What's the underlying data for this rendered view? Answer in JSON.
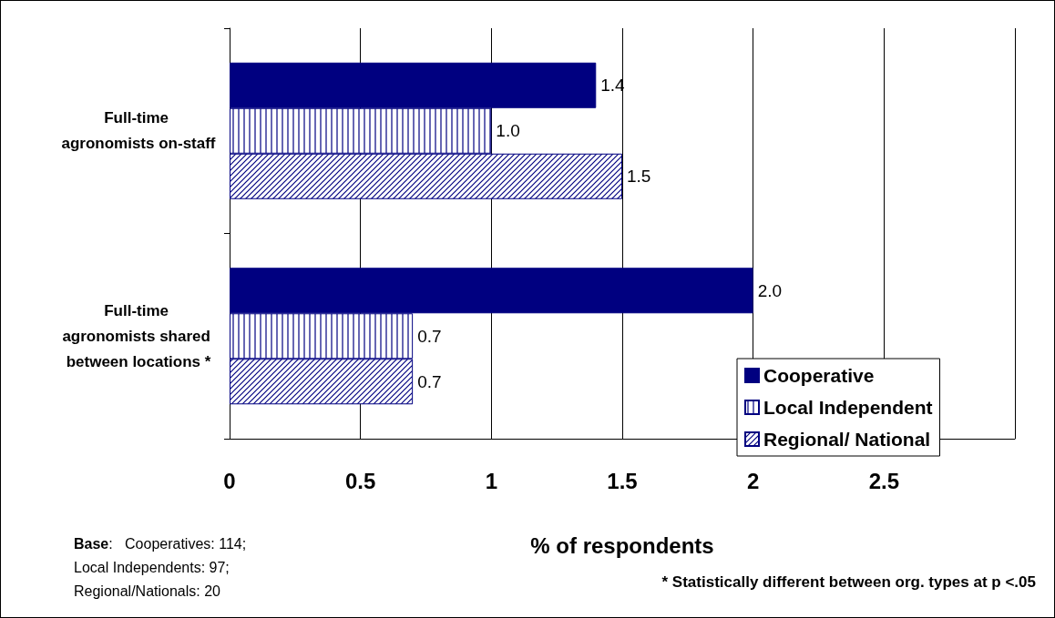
{
  "chart_data": {
    "type": "bar",
    "orientation": "horizontal",
    "xlabel": "% of respondents",
    "categories": [
      "Full-time agronomists on-staff",
      "Full-time agronomists shared between locations *"
    ],
    "series": [
      {
        "name": "Cooperative",
        "color": "#000080",
        "values": [
          1.4,
          2.0
        ],
        "value_labels": [
          "1.4",
          "2.0"
        ]
      },
      {
        "name": "Local Independent",
        "color": "#000080",
        "values": [
          1.0,
          0.7
        ],
        "value_labels": [
          "1.0",
          "0.7"
        ]
      },
      {
        "name": "Regional/ National",
        "color": "#000080",
        "values": [
          1.5,
          0.7
        ],
        "value_labels": [
          "1.5",
          "0.7"
        ]
      }
    ],
    "xlim": [
      0,
      3
    ],
    "xticks": [
      0,
      0.5,
      1,
      1.5,
      2,
      2.5,
      {
        "value": 3,
        "label": null
      }
    ],
    "grid": "x",
    "legend": "bottom right",
    "annotations": [
      "Base:   Cooperatives: 114;\nLocal Independents: 97;\nRegional/Nationals: 20",
      "* Statistically different between org. types at p <.05"
    ]
  }
}
